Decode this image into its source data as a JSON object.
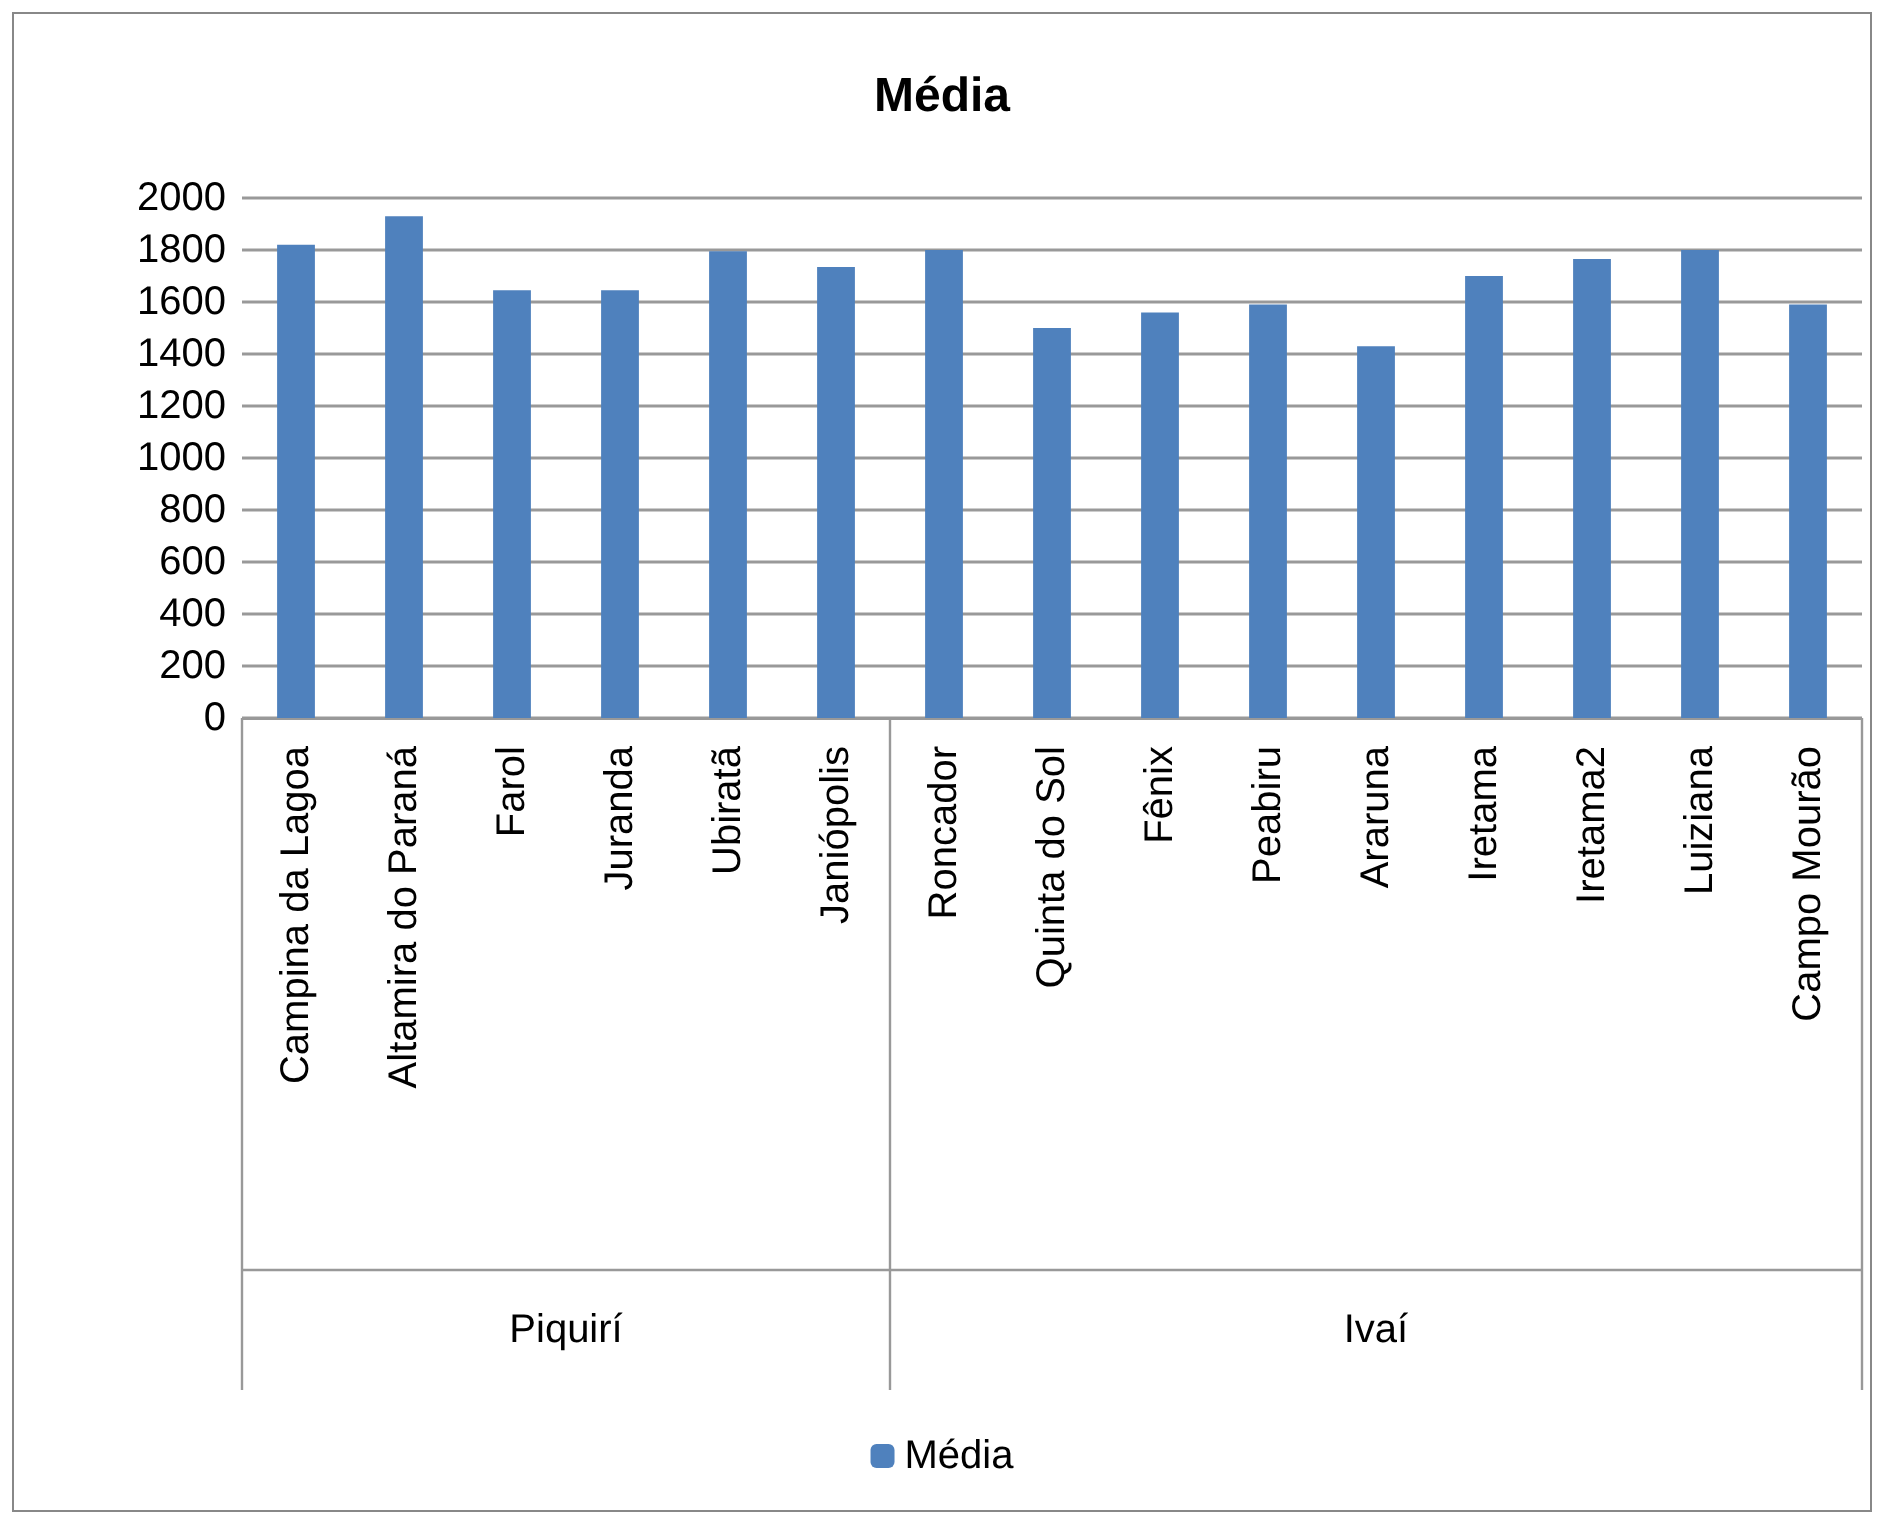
{
  "chart_data": {
    "type": "bar",
    "title": "Média",
    "categories": [
      "Campina da Lagoa",
      "Altamira do Paraná",
      "Farol",
      "Juranda",
      "Ubiratã",
      "Janiópolis",
      "Roncador",
      "Quinta do Sol",
      "Fênix",
      "Peabiru",
      "Araruna",
      "Iretama",
      "Iretama2",
      "Luiziana",
      "Campo Mourão"
    ],
    "series": [
      {
        "name": "Média",
        "color": "#4f81bd",
        "values": [
          1820,
          1930,
          1645,
          1645,
          1795,
          1735,
          1800,
          1500,
          1560,
          1590,
          1430,
          1700,
          1765,
          1800,
          1590
        ]
      }
    ],
    "annotations": [
      "Piquirí",
      "Ivaí"
    ],
    "ylim": [
      0,
      2000
    ],
    "yticks": [
      0,
      200,
      400,
      600,
      800,
      1000,
      1200,
      1400,
      1600,
      1800,
      2000
    ],
    "grid": "y",
    "legend": "bottom"
  }
}
